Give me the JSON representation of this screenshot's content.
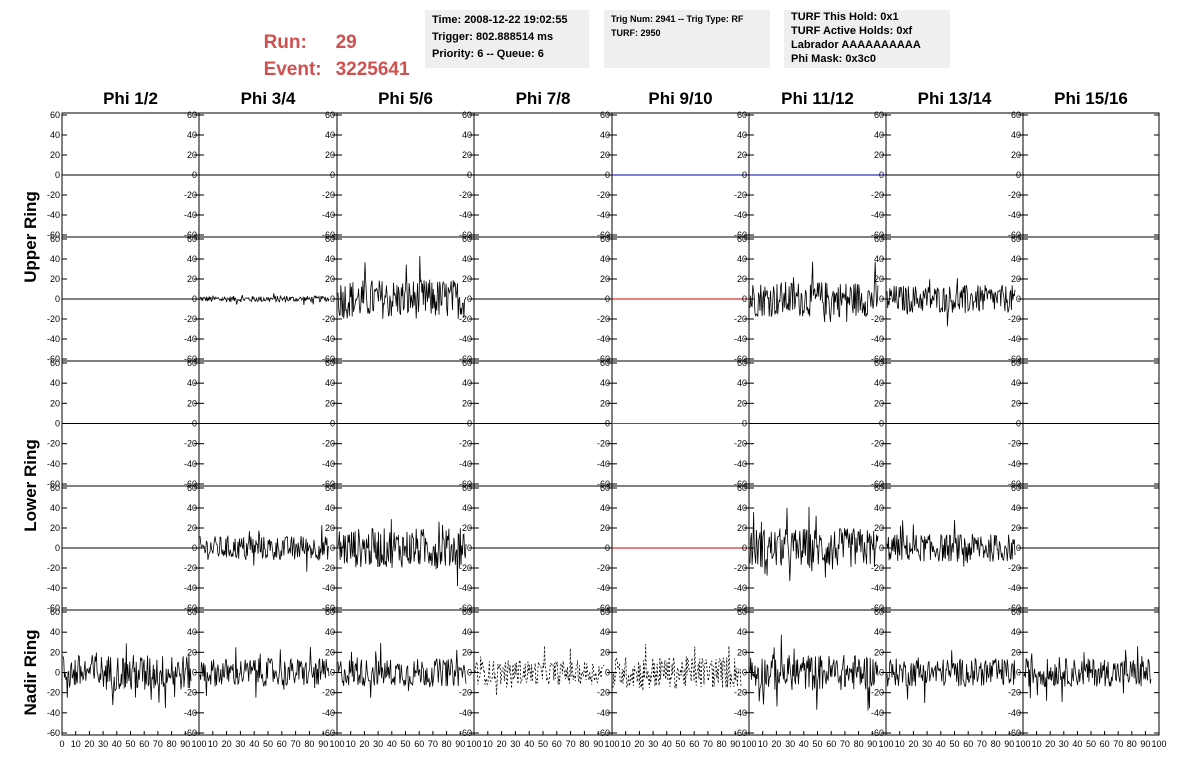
{
  "header": {
    "run_label": "Run:",
    "run_value": "29",
    "event_label": "Event:",
    "event_value": "3225641",
    "info1": [
      "Time: 2008-12-22 19:02:55",
      "Trigger: 802.888514 ms",
      "Priority: 6 -- Queue: 6"
    ],
    "info2": [
      "Trig Num: 2941 -- Trig Type: RF",
      "",
      "TURF: 2950"
    ],
    "info3": [
      "TURF This Hold: 0x1",
      "TURF Active Holds: 0xf",
      "Labrador AAAAAAAAAA",
      "Phi Mask: 0x3c0"
    ]
  },
  "columns": [
    "Phi 1/2",
    "Phi 3/4",
    "Phi 5/6",
    "Phi 7/8",
    "Phi 9/10",
    "Phi 11/12",
    "Phi 13/14",
    "Phi 15/16"
  ],
  "rings": [
    "Upper Ring",
    "Lower Ring",
    "Nadir Ring"
  ],
  "colors": {
    "header_red": "#d05050",
    "info_bg": "#efefef",
    "trace": "#000000",
    "blue": "#0000aa",
    "red": "#cc0000",
    "green": "#009900"
  },
  "chart_data": {
    "type": "line",
    "title": "",
    "ylim": [
      -60,
      60
    ],
    "xlim": [
      0,
      100
    ],
    "y_ticks": [
      -60,
      -40,
      -20,
      0,
      20,
      40,
      60
    ],
    "x_ticks": [
      0,
      10,
      20,
      30,
      40,
      50,
      60,
      70,
      80,
      90,
      100
    ],
    "x_tick_labels": [
      "0",
      "10",
      "20",
      "30",
      "40",
      "50",
      "60",
      "70",
      "80",
      "90",
      "100"
    ],
    "rows": [
      {
        "ring": "Upper Ring",
        "panels": [
          "flat",
          "flat",
          "flat",
          "flat",
          "flat-blue",
          "flat-blue",
          "flat",
          "flat"
        ]
      },
      {
        "ring": "Upper Ring",
        "panels": [
          "flat",
          "noise-small",
          "noise",
          "flat",
          "flat-red",
          "noise",
          "noise",
          "flat"
        ]
      },
      {
        "ring": "Lower Ring",
        "panels": [
          "flat",
          "flat",
          "flat",
          "flat",
          "flat-green",
          "flat",
          "flat",
          "flat"
        ]
      },
      {
        "ring": "Lower Ring",
        "panels": [
          "flat",
          "noise",
          "noise",
          "flat",
          "flat-red",
          "noise",
          "noise",
          "flat"
        ]
      },
      {
        "ring": "Nadir Ring",
        "panels": [
          "noise",
          "noise",
          "noise",
          "noise-dashed",
          "noise-dashed",
          "noise",
          "noise",
          "noise"
        ]
      }
    ],
    "panel_amplitude": {
      "upper2": [
        0,
        3,
        20,
        0,
        0,
        18,
        14,
        0
      ],
      "lower2": [
        0,
        12,
        20,
        0,
        0,
        20,
        14,
        0
      ],
      "nadir": [
        18,
        14,
        14,
        12,
        16,
        18,
        14,
        14
      ]
    }
  }
}
